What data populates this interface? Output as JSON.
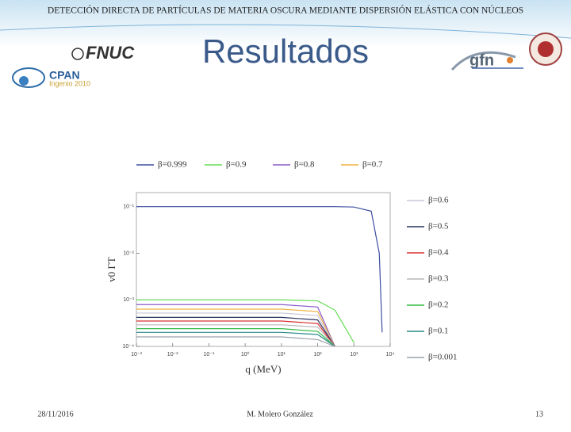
{
  "header": {
    "banner": "DETECCIÓN DIRECTA DE PARTÍCULAS DE MATERIA OSCURA MEDIANTE DISPERSIÓN ELÁSTICA CON NÚCLEOS",
    "title": "Resultados",
    "logos": [
      "FNUC",
      "CPAN",
      "Ingenio 2010",
      "gfn"
    ]
  },
  "footer": {
    "date": "28/11/2016",
    "author": "M. Molero González",
    "page": "13"
  },
  "chart_data": {
    "type": "line",
    "x_label": "q (MeV)",
    "y_label": "v0 ΓT",
    "log_x": true,
    "log_y": true,
    "xlim": [
      0.001,
      10000
    ],
    "ylim": [
      0.0001,
      0.2
    ],
    "xticks": [
      {
        "value": 0.001,
        "label": "10⁻³"
      },
      {
        "value": 0.01,
        "label": "10⁻²"
      },
      {
        "value": 0.1,
        "label": "10⁻¹"
      },
      {
        "value": 1,
        "label": "10⁰"
      },
      {
        "value": 10,
        "label": "10¹"
      },
      {
        "value": 100,
        "label": "10²"
      },
      {
        "value": 1000,
        "label": "10³"
      },
      {
        "value": 10000,
        "label": "10⁴"
      }
    ],
    "yticks": [
      {
        "value": 0.0001,
        "label": "10⁻⁴"
      },
      {
        "value": 0.001,
        "label": "10⁻³"
      },
      {
        "value": 0.01,
        "label": "10⁻²"
      },
      {
        "value": 0.1,
        "label": "10⁻¹"
      }
    ],
    "x": [
      0.001,
      1,
      10,
      100,
      300,
      1000,
      3000,
      5000,
      6000
    ],
    "series": [
      {
        "name": "β=0.999",
        "color": "#3c4fa0",
        "values": [
          0.1,
          0.1,
          0.1,
          0.1,
          0.1,
          0.098,
          0.08,
          0.01,
          0.0002
        ]
      },
      {
        "name": "β=0.9",
        "color": "#66dd55",
        "values": [
          0.001,
          0.001,
          0.001,
          0.00095,
          0.0006,
          0.00012,
          null,
          null,
          null
        ]
      },
      {
        "name": "β=0.8",
        "color": "#8a5cc8",
        "values": [
          0.00079,
          0.00079,
          0.00079,
          0.0007,
          0.0001,
          null,
          null,
          null,
          null
        ]
      },
      {
        "name": "β=0.7",
        "color": "#f0b040",
        "values": [
          0.00063,
          0.00063,
          0.00063,
          0.00056,
          0.0001,
          null,
          null,
          null,
          null
        ]
      },
      {
        "name": "β=0.6",
        "color": "#c8c8d8",
        "values": [
          0.00052,
          0.00052,
          0.00052,
          0.00046,
          0.0001,
          null,
          null,
          null,
          null
        ]
      },
      {
        "name": "β=0.5",
        "color": "#2a3460",
        "values": [
          0.00042,
          0.00042,
          0.00042,
          0.00037,
          0.0001,
          null,
          null,
          null,
          null
        ]
      },
      {
        "name": "β=0.4",
        "color": "#d83030",
        "values": [
          0.00035,
          0.00035,
          0.00035,
          0.00031,
          0.0001,
          null,
          null,
          null,
          null
        ]
      },
      {
        "name": "β=0.3",
        "color": "#b8b8b8",
        "values": [
          0.00029,
          0.00029,
          0.00029,
          0.00026,
          0.0001,
          null,
          null,
          null,
          null
        ]
      },
      {
        "name": "β=0.2",
        "color": "#33bb44",
        "values": [
          0.00024,
          0.00024,
          0.00024,
          0.00021,
          0.0001,
          null,
          null,
          null,
          null
        ]
      },
      {
        "name": "β=0.1",
        "color": "#2a8a8a",
        "values": [
          0.0002,
          0.0002,
          0.0002,
          0.00018,
          0.0001,
          null,
          null,
          null,
          null
        ]
      },
      {
        "name": "β=0.001",
        "color": "#9aa0a8",
        "values": [
          0.00016,
          0.00016,
          0.00016,
          0.00014,
          0.0001,
          null,
          null,
          null,
          null
        ]
      }
    ]
  }
}
